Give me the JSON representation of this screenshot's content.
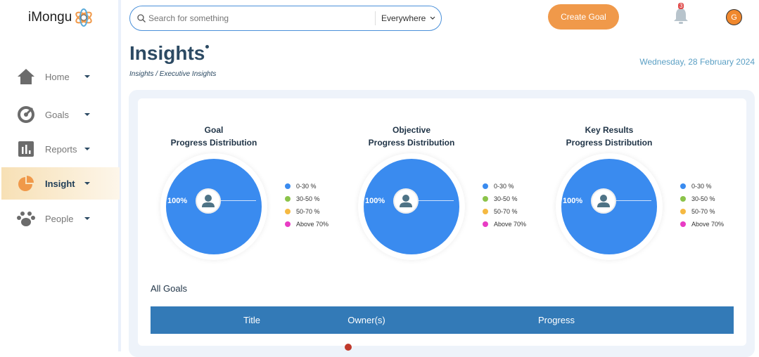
{
  "app": {
    "name": "iMongu"
  },
  "sidebar": {
    "items": [
      {
        "label": "Home"
      },
      {
        "label": "Goals"
      },
      {
        "label": "Reports"
      },
      {
        "label": "Insight"
      },
      {
        "label": "People"
      }
    ]
  },
  "search": {
    "placeholder": "Search for something",
    "scope": "Everywhere"
  },
  "header": {
    "create_label": "Create Goal",
    "notifications": "3",
    "avatar_initial": "G"
  },
  "page": {
    "title": "Insights",
    "breadcrumb": "Insights / Executive Insights",
    "date": "Wednesday, 28 February 2024"
  },
  "legend": [
    "0-30 %",
    "30-50 %",
    "50-70 %",
    "Above 70%"
  ],
  "colors": {
    "c0": "#3a8bef",
    "c1": "#8bc34a",
    "c2": "#f5b942",
    "c3": "#e83cc4",
    "accent": "#f0994a",
    "table": "#337ab7"
  },
  "chart_data": [
    {
      "type": "pie",
      "title_line1": "Goal",
      "title_line2": "Progress Distribution",
      "categories": [
        "0-30 %",
        "30-50 %",
        "50-70 %",
        "Above 70%"
      ],
      "values": [
        100,
        0,
        0,
        0
      ],
      "label": "100%"
    },
    {
      "type": "pie",
      "title_line1": "Objective",
      "title_line2": "Progress Distribution",
      "categories": [
        "0-30 %",
        "30-50 %",
        "50-70 %",
        "Above 70%"
      ],
      "values": [
        100,
        0,
        0,
        0
      ],
      "label": "100%"
    },
    {
      "type": "pie",
      "title_line1": "Key Results",
      "title_line2": "Progress Distribution",
      "categories": [
        "0-30 %",
        "30-50 %",
        "50-70 %",
        "Above 70%"
      ],
      "values": [
        100,
        0,
        0,
        0
      ],
      "label": "100%"
    }
  ],
  "goals": {
    "heading": "All Goals",
    "columns": [
      "Title",
      "Owner(s)",
      "Progress"
    ]
  }
}
